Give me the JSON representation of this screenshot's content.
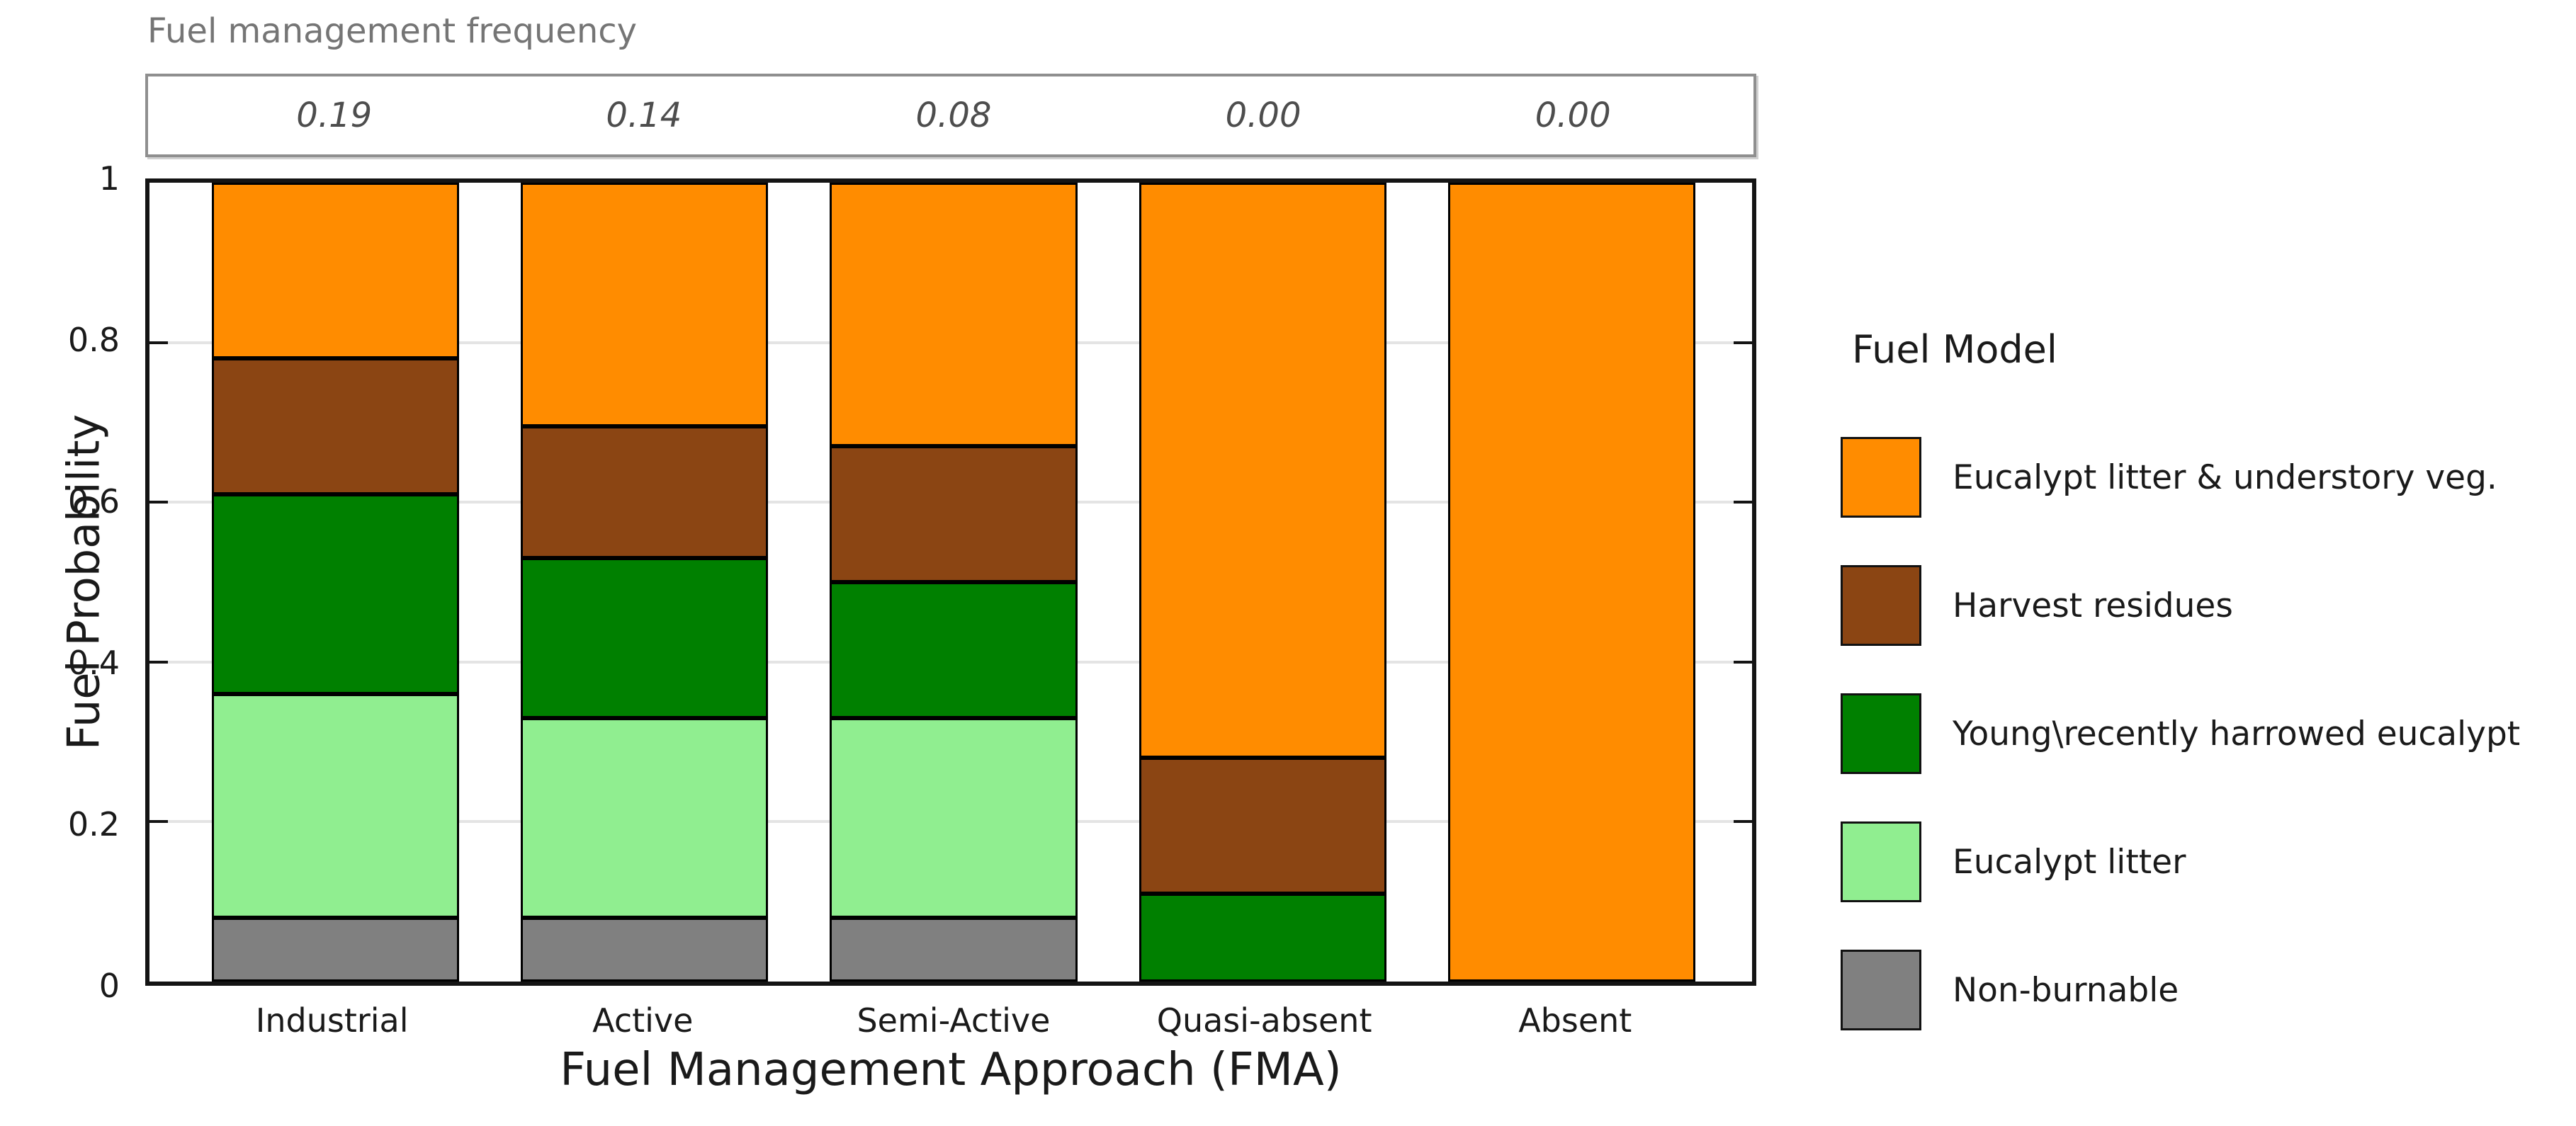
{
  "figure": {
    "frequency_axis": {
      "title": "Fuel management frequency",
      "value_labels": [
        "0.19",
        "0.14",
        "0.08",
        "0.00",
        "0.00"
      ]
    },
    "y_axis": {
      "title": "Fuel Probability",
      "tick_labels": [
        "0",
        "0.2",
        "0.4",
        "0.6",
        "0.8",
        "1"
      ]
    },
    "x_axis": {
      "title": "Fuel Management Approach (FMA)"
    },
    "legend": {
      "title": "Fuel Model"
    }
  },
  "chart_data": {
    "type": "bar",
    "stacked": true,
    "title": "Fuel management frequency",
    "xlabel": "Fuel Management Approach (FMA)",
    "ylabel": "Fuel Probability",
    "ylim": [
      0,
      1
    ],
    "grid": true,
    "legend_title": "Fuel Model",
    "legend_position": "right",
    "categories": [
      "Industrial",
      "Active",
      "Semi-Active",
      "Quasi-absent",
      "Absent"
    ],
    "fuel_management_frequency": [
      0.19,
      0.14,
      0.08,
      0.0,
      0.0
    ],
    "series": [
      {
        "name": "Non-burnable",
        "color": "#808080",
        "values": [
          0.08,
          0.08,
          0.08,
          0.0,
          0.0
        ]
      },
      {
        "name": "Eucalypt litter",
        "color": "#90EE90",
        "values": [
          0.28,
          0.25,
          0.25,
          0.0,
          0.0
        ]
      },
      {
        "name": "Young\\recently harrowed eucalypt",
        "color": "#008000",
        "values": [
          0.25,
          0.2,
          0.17,
          0.11,
          0.0
        ]
      },
      {
        "name": "Harvest residues",
        "color": "#8B4513",
        "values": [
          0.17,
          0.165,
          0.17,
          0.17,
          0.0
        ]
      },
      {
        "name": "Eucalypt litter & understory veg.",
        "color": "#FF8C00",
        "values": [
          0.22,
          0.305,
          0.33,
          0.72,
          1.0
        ]
      }
    ]
  }
}
